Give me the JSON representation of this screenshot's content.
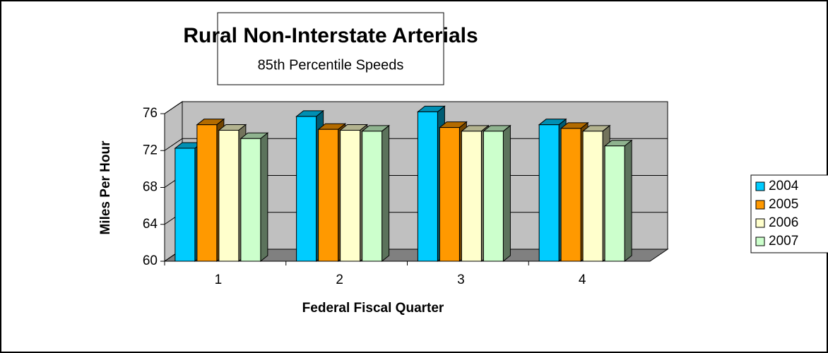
{
  "chart_data": {
    "type": "bar3d",
    "title": "Rural Non-Interstate Arterials",
    "subtitle": "85th Percentile Speeds",
    "x_label": "Federal Fiscal Quarter",
    "y_label": "Miles Per Hour",
    "categories": [
      "1",
      "2",
      "3",
      "4"
    ],
    "series": [
      {
        "name": "2004",
        "color": "#00ccff",
        "values": [
          72.25,
          75.7,
          76.2,
          74.8
        ]
      },
      {
        "name": "2005",
        "color": "#ff9900",
        "values": [
          74.8,
          74.3,
          74.5,
          74.4
        ]
      },
      {
        "name": "2006",
        "color": "#ffffcc",
        "values": [
          74.2,
          74.2,
          74.1,
          74.1
        ]
      },
      {
        "name": "2007",
        "color": "#ccffcc",
        "values": [
          73.3,
          74.1,
          74.1,
          72.5
        ]
      }
    ],
    "ylim": [
      60,
      76
    ],
    "yticks": [
      60,
      64,
      68,
      72,
      76
    ],
    "grid": true,
    "legend": "right"
  }
}
